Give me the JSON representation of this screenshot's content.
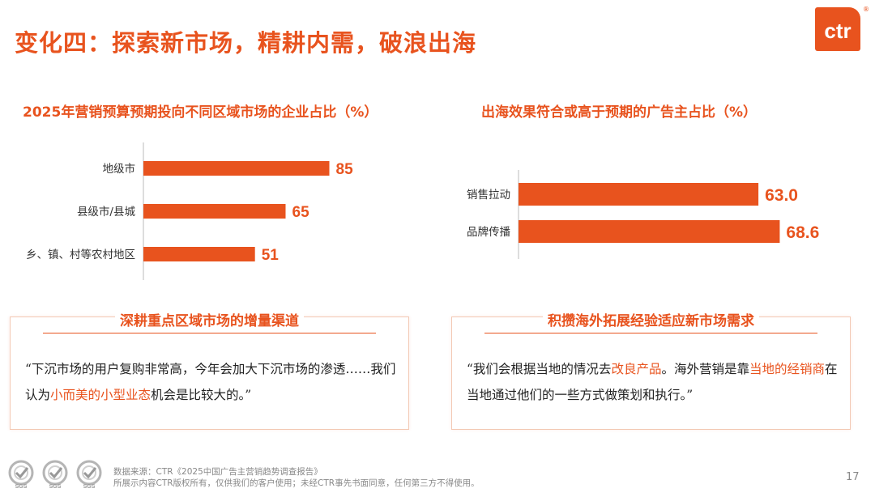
{
  "title": "变化四：探索新市场，精耕内需，破浪出海",
  "logo": {
    "text": "ctr",
    "registered": "®"
  },
  "chart_data": [
    {
      "type": "bar",
      "orientation": "horizontal",
      "title": "2025年营销预算预期投向不同区域市场的企业占比（%）",
      "categories": [
        "地级市",
        "县级市/县城",
        "乡、镇、村等农村地区"
      ],
      "values": [
        85,
        65,
        51
      ],
      "value_labels": [
        "85",
        "65",
        "51"
      ],
      "xlim": [
        0,
        100
      ],
      "color": "#E8531E"
    },
    {
      "type": "bar",
      "orientation": "horizontal",
      "title": "出海效果符合或高于预期的广告主占比（%）",
      "categories": [
        "销售拉动",
        "品牌传播"
      ],
      "values": [
        63.0,
        68.6
      ],
      "value_labels": [
        "63.0",
        "68.6"
      ],
      "xlim": [
        0,
        100
      ],
      "color": "#E8531E"
    }
  ],
  "panels": {
    "left": {
      "title": "深耕重点区域市场的增量渠道",
      "quote": [
        {
          "text": "“下沉市场的用户复购非常高，今年会加大下沉市场的渗透……我们认为",
          "hl": false
        },
        {
          "text": "小而美的小型业态",
          "hl": true
        },
        {
          "text": "机会是比较大的。”",
          "hl": false
        }
      ]
    },
    "right": {
      "title": "积攒海外拓展经验适应新市场需求",
      "quote": [
        {
          "text": "“我们会根据当地的情况去",
          "hl": false
        },
        {
          "text": "改良产品",
          "hl": true
        },
        {
          "text": "。海外营销是靠",
          "hl": false
        },
        {
          "text": "当地的经销商",
          "hl": true
        },
        {
          "text": "在当地通过他们的一些方式做策划和执行。”",
          "hl": false
        }
      ]
    }
  },
  "footer": {
    "source": "数据来源：CTR《2025中国广告主营销趋势调查报告》",
    "copyright": "所展示内容CTR版权所有，仅供我们的客户使用；未经CTR事先书面同意，任何第三方不得使用。",
    "badges": [
      "SGS",
      "SGS",
      "SGS"
    ]
  },
  "page_number": "17",
  "colors": {
    "accent": "#E8531E"
  }
}
